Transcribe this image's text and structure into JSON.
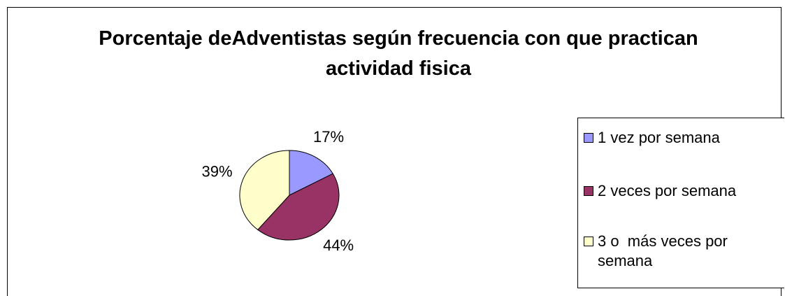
{
  "chart_data": {
    "type": "pie",
    "title": "Porcentaje deAdventistas según frecuencia con que practican actividad fisica",
    "categories": [
      "1 vez por semana",
      "2 veces por semana",
      "3 o  más veces por semana"
    ],
    "values": [
      17,
      44,
      39
    ],
    "value_labels": [
      "17%",
      "44%",
      "39%"
    ],
    "colors": [
      "#9999ff",
      "#993366",
      "#ffffcc"
    ],
    "legend": "right"
  }
}
